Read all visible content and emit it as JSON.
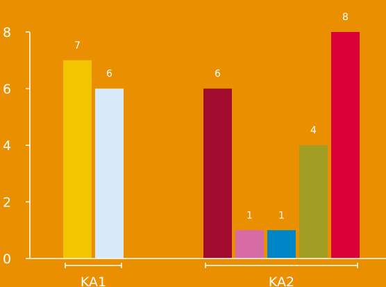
{
  "chart_data": {
    "type": "bar",
    "title": "",
    "xlabel": "",
    "ylabel": "",
    "ylim": [
      0,
      8
    ],
    "yticks": [
      0,
      2,
      4,
      6,
      8
    ],
    "grid": false,
    "legend": "none",
    "groups": [
      {
        "label": "KA1",
        "bars": [
          {
            "value": 7,
            "color": "#F2C500"
          },
          {
            "value": 6,
            "color": "#D6EAF8"
          }
        ]
      },
      {
        "label": "KA2",
        "bars": [
          {
            "value": 6,
            "color": "#A10B2E"
          },
          {
            "value": 1,
            "color": "#D66BA6"
          },
          {
            "value": 1,
            "color": "#0086C6"
          },
          {
            "value": 4,
            "color": "#A19E23"
          },
          {
            "value": 8,
            "color": "#DC0039"
          }
        ]
      }
    ],
    "colors": {
      "background": "#EA9000",
      "axis": "#ffffff",
      "text": "#ffffff"
    }
  }
}
